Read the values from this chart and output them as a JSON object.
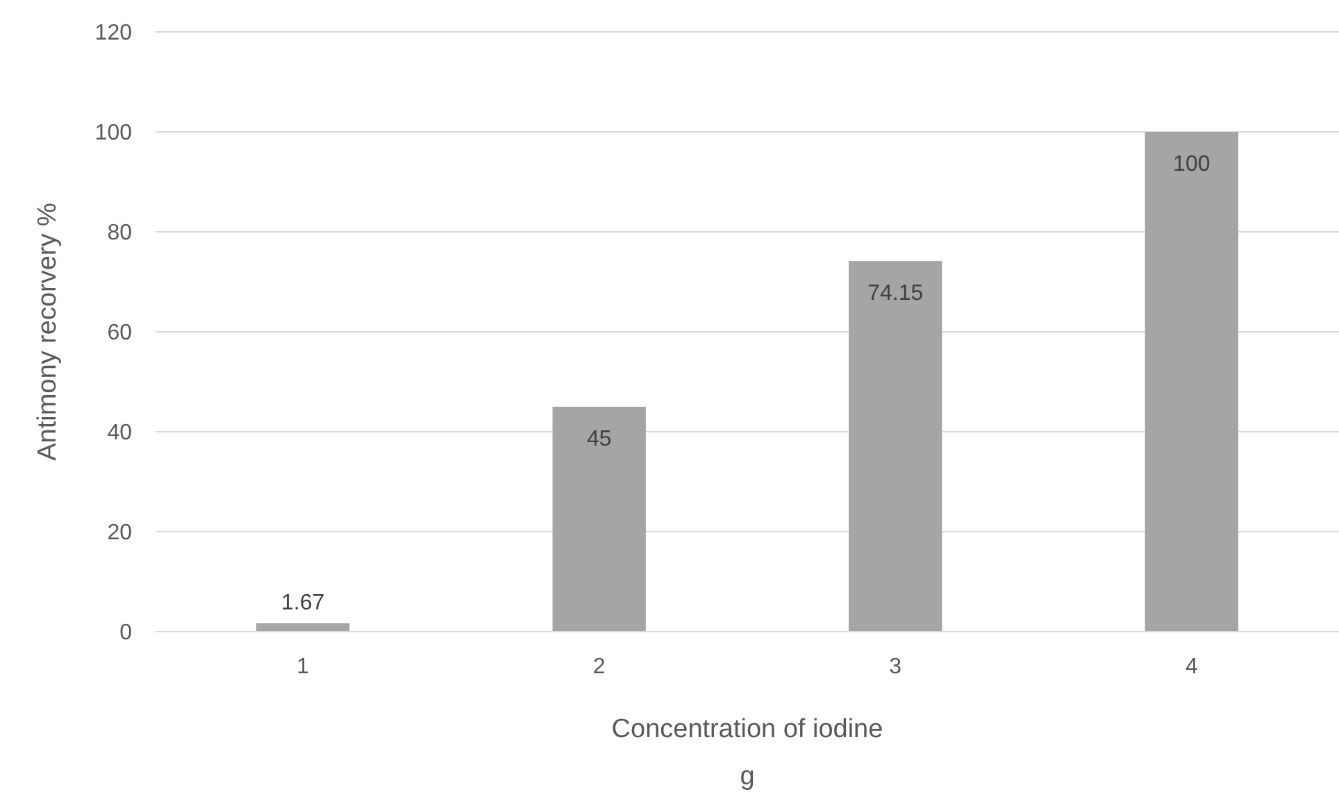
{
  "chart_data": {
    "type": "bar",
    "categories": [
      "1",
      "2",
      "3",
      "4"
    ],
    "values": [
      1.67,
      45,
      74.15,
      100
    ],
    "color": "#a5a5a5",
    "ylim": [
      0,
      120
    ],
    "yticks": [
      0,
      20,
      40,
      60,
      80,
      100,
      120
    ],
    "grid": "y",
    "data_labels": true,
    "xlabel": "Concentration of iodine\ng",
    "ylabel": "Antimony recorvery %"
  }
}
